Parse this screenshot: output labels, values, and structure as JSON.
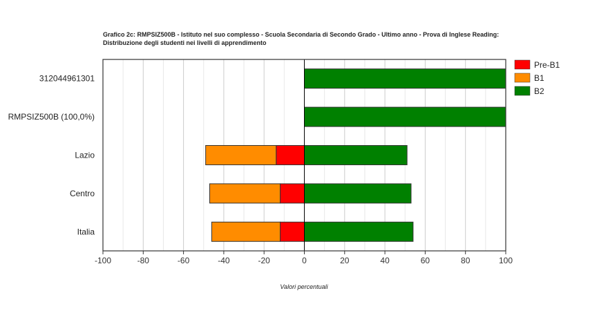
{
  "chart_data": {
    "type": "bar",
    "orientation": "horizontal",
    "stacked": true,
    "title_lines": [
      "Grafico 2c: RMPSIZ500B - Istituto nel suo complesso - Scuola Secondaria di Secondo Grado - Ultimo anno - Prova di Inglese Reading:",
      "Distribuzione degli studenti nei livelli di apprendimento"
    ],
    "xlabel": "Valori percentuali",
    "ylabel": "",
    "categories": [
      "312044961301",
      "RMPSIZ500B (100,0%)",
      "Lazio",
      "Centro",
      "Italia"
    ],
    "series": [
      {
        "name": "Pre-B1",
        "color": "#ff0000",
        "values": [
          0,
          0,
          -14,
          -12,
          -12
        ]
      },
      {
        "name": "B1",
        "color": "#ff8c00",
        "values": [
          0,
          0,
          -35,
          -35,
          -34
        ]
      },
      {
        "name": "B2",
        "color": "#008000",
        "values": [
          100,
          100,
          51,
          53,
          54
        ]
      }
    ],
    "xlim": [
      -100,
      100
    ],
    "xticks": [
      -100,
      -80,
      -60,
      -40,
      -20,
      0,
      20,
      40,
      60,
      80,
      100
    ],
    "grid": true,
    "legend_position": "right"
  }
}
